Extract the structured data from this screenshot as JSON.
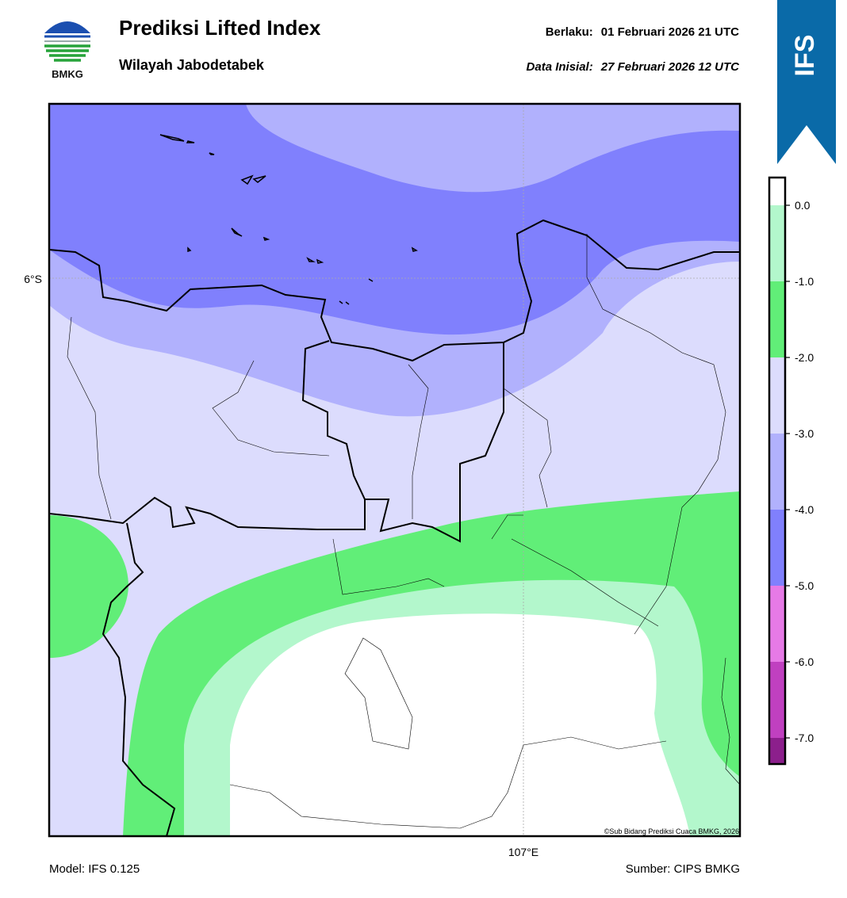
{
  "logo": {
    "text": "BMKG"
  },
  "header": {
    "title": "Prediksi Lifted Index",
    "subtitle": "Wilayah Jabodetabek",
    "valid_label": "Berlaku:",
    "valid_time": "01 Februari 2026 21 UTC",
    "init_label": "Data Inisial:",
    "init_time": "27 Februari 2026 12 UTC"
  },
  "banner": {
    "text": "IFS"
  },
  "map": {
    "lat_label": "6°S",
    "lon_label": "107°E",
    "credit": "©Sub Bidang Prediksi Cuaca BMKG, 2026"
  },
  "colorbar": {
    "labels": [
      "0.0",
      "-1.0",
      "-2.0",
      "-3.0",
      "-4.0",
      "-5.0",
      "-6.0",
      "-7.0"
    ],
    "colors": [
      "#ffffff",
      "#b3f7cc",
      "#61ee78",
      "#dcdcfd",
      "#b1b1fd",
      "#8080fd",
      "#e67ae6",
      "#c040c0",
      "#8c1f8c"
    ]
  },
  "footer": {
    "model": "Model: IFS 0.125",
    "source": "Sumber: CIPS BMKG"
  }
}
